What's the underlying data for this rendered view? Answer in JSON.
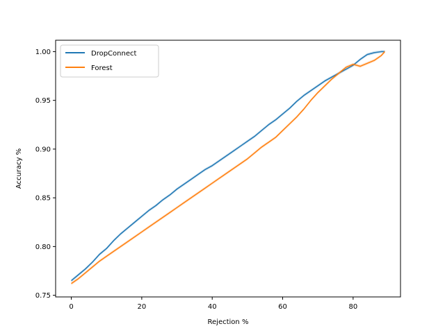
{
  "chart_data": {
    "type": "line",
    "xlabel": "Rejection %",
    "ylabel": "Accuracy %",
    "xlim": [
      -4.45,
      93.45
    ],
    "ylim": [
      0.7483,
      1.0117
    ],
    "xticks": [
      0,
      20,
      40,
      60,
      80
    ],
    "xtick_labels": [
      "0",
      "20",
      "40",
      "60",
      "80"
    ],
    "yticks": [
      0.75,
      0.8,
      0.85,
      0.9,
      0.95,
      1.0
    ],
    "ytick_labels": [
      "0.75",
      "0.80",
      "0.85",
      "0.90",
      "0.95",
      "1.00"
    ],
    "grid": false,
    "legend_position": "upper-left",
    "series": [
      {
        "name": "DropConnect",
        "color": "#1f77b4",
        "x": [
          0,
          2,
          4,
          6,
          8,
          10,
          12,
          14,
          16,
          18,
          20,
          22,
          24,
          26,
          28,
          30,
          32,
          34,
          36,
          38,
          40,
          42,
          44,
          46,
          48,
          50,
          52,
          54,
          56,
          58,
          60,
          62,
          64,
          66,
          68,
          70,
          72,
          74,
          76,
          78,
          80,
          82,
          84,
          86,
          88,
          89
        ],
        "y": [
          0.765,
          0.771,
          0.777,
          0.784,
          0.792,
          0.798,
          0.806,
          0.813,
          0.819,
          0.825,
          0.831,
          0.837,
          0.842,
          0.848,
          0.853,
          0.859,
          0.864,
          0.869,
          0.874,
          0.879,
          0.883,
          0.888,
          0.893,
          0.898,
          0.903,
          0.908,
          0.913,
          0.919,
          0.925,
          0.93,
          0.936,
          0.942,
          0.949,
          0.955,
          0.96,
          0.965,
          0.97,
          0.974,
          0.978,
          0.982,
          0.986,
          0.992,
          0.997,
          0.999,
          1.0,
          1.0
        ]
      },
      {
        "name": "Forest",
        "color": "#ff7f0e",
        "x": [
          0,
          2,
          4,
          6,
          8,
          10,
          12,
          14,
          16,
          18,
          20,
          22,
          24,
          26,
          28,
          30,
          32,
          34,
          36,
          38,
          40,
          42,
          44,
          46,
          48,
          50,
          52,
          54,
          56,
          58,
          60,
          62,
          64,
          66,
          68,
          70,
          72,
          74,
          76,
          78,
          80,
          82,
          84,
          86,
          88,
          89
        ],
        "y": [
          0.762,
          0.767,
          0.773,
          0.779,
          0.785,
          0.79,
          0.795,
          0.8,
          0.805,
          0.81,
          0.815,
          0.82,
          0.825,
          0.83,
          0.835,
          0.84,
          0.845,
          0.85,
          0.855,
          0.86,
          0.865,
          0.87,
          0.875,
          0.88,
          0.885,
          0.89,
          0.896,
          0.902,
          0.907,
          0.912,
          0.919,
          0.926,
          0.933,
          0.941,
          0.95,
          0.958,
          0.965,
          0.972,
          0.978,
          0.984,
          0.987,
          0.985,
          0.988,
          0.991,
          0.996,
          1.0
        ]
      }
    ]
  }
}
